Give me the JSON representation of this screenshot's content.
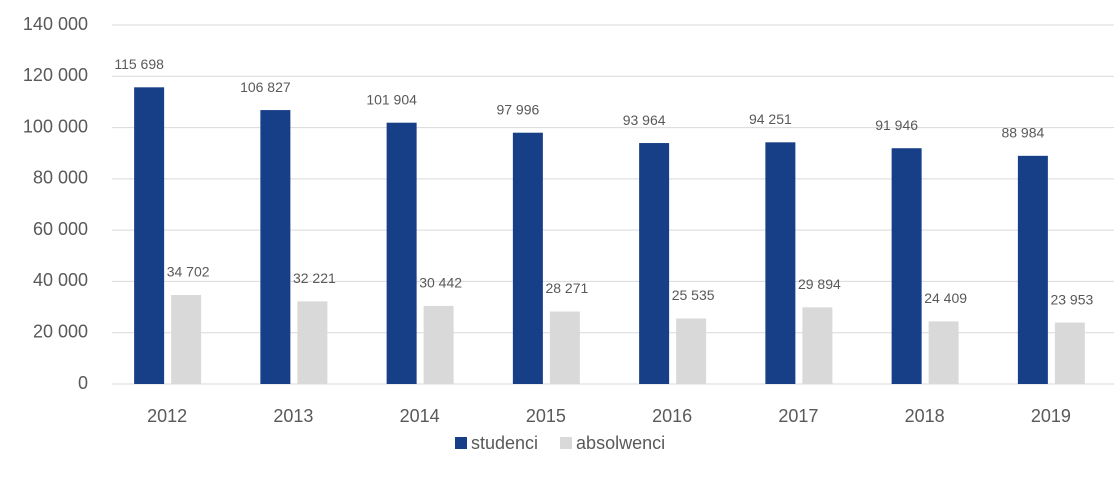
{
  "chart_data": {
    "type": "bar",
    "categories": [
      "2012",
      "2013",
      "2014",
      "2015",
      "2016",
      "2017",
      "2018",
      "2019"
    ],
    "series": [
      {
        "name": "studenci",
        "color": "#173f87",
        "values": [
          115698,
          106827,
          101904,
          97996,
          93964,
          94251,
          91946,
          88984
        ],
        "value_labels": [
          "115 698",
          "106 827",
          "101 904",
          "97 996",
          "93 964",
          "94 251",
          "91 946",
          "88 984"
        ]
      },
      {
        "name": "absolwenci",
        "color": "#d9d9d9",
        "values": [
          34702,
          32221,
          30442,
          28271,
          25535,
          29894,
          24409,
          23953
        ],
        "value_labels": [
          "34 702",
          "32 221",
          "30 442",
          "28 271",
          "25 535",
          "29 894",
          "24 409",
          "23 953"
        ]
      }
    ],
    "ylim": [
      0,
      140000
    ],
    "yticks": [
      0,
      {
        "value": 20000,
        "label": "20 000"
      },
      {
        "value": 40000,
        "label": "40 000"
      },
      {
        "value": 60000,
        "label": "60 000"
      },
      {
        "value": 80000,
        "label": "80 000"
      },
      {
        "value": 100000,
        "label": "100 000"
      },
      {
        "value": 120000,
        "label": "120 000"
      },
      {
        "value": 140000,
        "label": "140 000"
      }
    ],
    "grid": true,
    "legend": "bottom"
  }
}
